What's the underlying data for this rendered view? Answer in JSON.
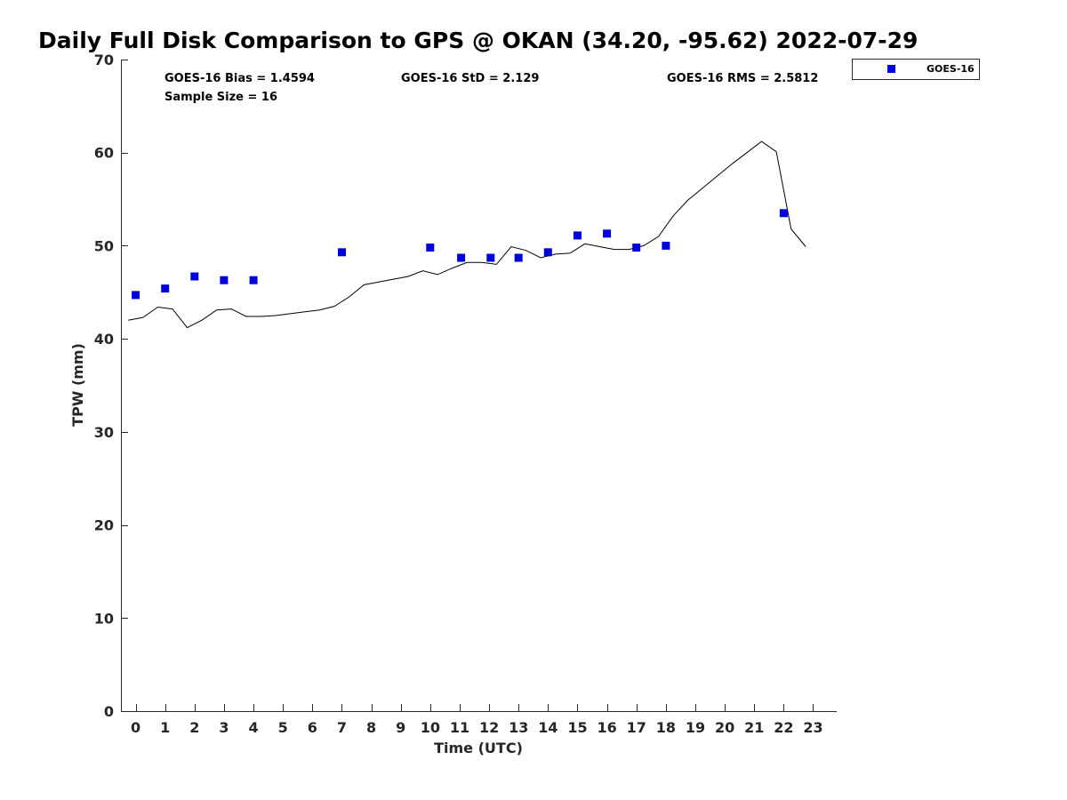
{
  "chart_data": {
    "type": "scatter",
    "title": "Daily Full Disk Comparison to GPS @ OKAN (34.20, -95.62) 2022-07-29",
    "xlabel": "Time (UTC)",
    "ylabel": "TPW (mm)",
    "xlim": [
      -0.5,
      23.8
    ],
    "ylim": [
      0,
      70
    ],
    "xticks": [
      0,
      1,
      2,
      3,
      4,
      5,
      6,
      7,
      8,
      9,
      10,
      11,
      12,
      13,
      14,
      15,
      16,
      17,
      18,
      19,
      20,
      21,
      22,
      23
    ],
    "yticks": [
      0,
      10,
      20,
      30,
      40,
      50,
      60,
      70
    ],
    "grid": false,
    "legend_position": "top-right-outside",
    "stats": {
      "bias": "GOES-16 Bias = 1.4594",
      "std": "GOES-16 StD = 2.129",
      "rms": "GOES-16 RMS = 2.5812",
      "sample": "Sample Size = 16"
    },
    "series": [
      {
        "name": "GOES-16",
        "kind": "scatter",
        "marker": "square",
        "color": "#0000dd",
        "points": [
          [
            0.0,
            44.7
          ],
          [
            1.0,
            45.4
          ],
          [
            2.0,
            46.7
          ],
          [
            3.0,
            46.3
          ],
          [
            4.0,
            46.3
          ],
          [
            7.0,
            49.3
          ],
          [
            10.0,
            49.8
          ],
          [
            11.05,
            48.7
          ],
          [
            12.05,
            48.7
          ],
          [
            13.0,
            48.7
          ],
          [
            14.0,
            49.3
          ],
          [
            15.0,
            51.1
          ],
          [
            16.0,
            51.3
          ],
          [
            17.0,
            49.8
          ],
          [
            18.0,
            50.0
          ],
          [
            22.0,
            53.5
          ]
        ]
      },
      {
        "kind": "line",
        "color": "#000000",
        "points": [
          [
            -0.25,
            42.0
          ],
          [
            0.25,
            42.3
          ],
          [
            0.75,
            43.4
          ],
          [
            1.25,
            43.2
          ],
          [
            1.75,
            41.2
          ],
          [
            2.25,
            42.0
          ],
          [
            2.75,
            43.1
          ],
          [
            3.25,
            43.2
          ],
          [
            3.75,
            42.4
          ],
          [
            4.25,
            42.4
          ],
          [
            4.75,
            42.5
          ],
          [
            5.25,
            42.7
          ],
          [
            5.75,
            42.9
          ],
          [
            6.25,
            43.1
          ],
          [
            6.75,
            43.5
          ],
          [
            7.25,
            44.5
          ],
          [
            7.75,
            45.8
          ],
          [
            8.25,
            46.1
          ],
          [
            8.75,
            46.4
          ],
          [
            9.25,
            46.7
          ],
          [
            9.75,
            47.3
          ],
          [
            10.25,
            46.9
          ],
          [
            10.75,
            47.6
          ],
          [
            11.25,
            48.2
          ],
          [
            11.75,
            48.2
          ],
          [
            12.25,
            48.0
          ],
          [
            12.75,
            49.9
          ],
          [
            13.25,
            49.5
          ],
          [
            13.75,
            48.7
          ],
          [
            14.25,
            49.1
          ],
          [
            14.75,
            49.2
          ],
          [
            15.25,
            50.2
          ],
          [
            15.75,
            49.9
          ],
          [
            16.25,
            49.6
          ],
          [
            16.75,
            49.6
          ],
          [
            17.25,
            50.0
          ],
          [
            17.75,
            51.0
          ],
          [
            18.25,
            53.2
          ],
          [
            18.75,
            54.9
          ],
          [
            19.25,
            56.2
          ],
          [
            19.75,
            57.5
          ],
          [
            20.25,
            58.8
          ],
          [
            20.75,
            60.0
          ],
          [
            21.25,
            61.2
          ],
          [
            21.75,
            60.1
          ],
          [
            22.25,
            51.8
          ],
          [
            22.75,
            49.9
          ]
        ]
      }
    ]
  }
}
